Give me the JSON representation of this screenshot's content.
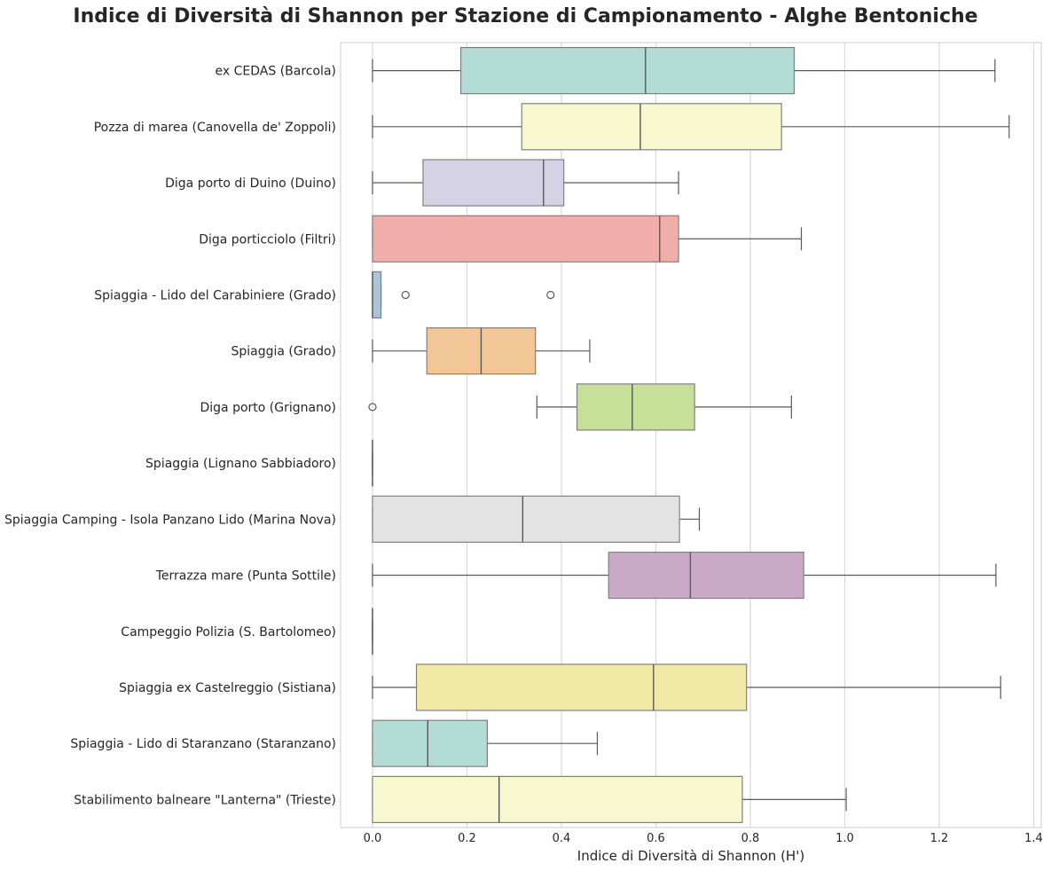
{
  "chart_data": {
    "type": "box",
    "orientation": "horizontal",
    "title": "Indice di Diversità di Shannon per Stazione di Campionamento - Alghe Bentoniche",
    "xlabel": "Indice di Diversità di Shannon (H')",
    "ylabel": "",
    "xlim": [
      -0.07,
      1.42
    ],
    "xticks": [
      0.0,
      0.2,
      0.4,
      0.6,
      0.8,
      1.0,
      1.2,
      1.4
    ],
    "xtick_labels": [
      "0.0",
      "0.2",
      "0.4",
      "0.6",
      "0.8",
      "1.0",
      "1.2",
      "1.4"
    ],
    "grid": "vertical",
    "categories": [
      "ex CEDAS (Barcola)",
      "Pozza di marea (Canovella de' Zoppoli)",
      "Diga porto di Duino (Duino)",
      "Diga porticciolo (Filtri)",
      "Spiaggia - Lido del Carabiniere (Grado)",
      "Spiaggia (Grado)",
      "Diga porto (Grignano)",
      "Spiaggia (Lignano Sabbiadoro)",
      "Spiaggia Camping - Isola Panzano Lido (Marina Nova)",
      "Terrazza mare (Punta Sottile)",
      "Campeggio Polizia (S. Bartolomeo)",
      "Spiaggia ex Castelreggio (Sistiana)",
      "Spiaggia - Lido di Staranzano (Staranzano)",
      "Stabilimento balneare \"Lanterna\" (Trieste)"
    ],
    "boxes": [
      {
        "whislo": 0.0,
        "q1": 0.187,
        "med": 0.578,
        "q3": 0.893,
        "whishi": 1.318,
        "fliers": [],
        "color": "#b3dcd6"
      },
      {
        "whislo": 0.0,
        "q1": 0.316,
        "med": 0.567,
        "q3": 0.866,
        "whishi": 1.348,
        "fliers": [],
        "color": "#f7f8cf"
      },
      {
        "whislo": 0.0,
        "q1": 0.107,
        "med": 0.362,
        "q3": 0.405,
        "whishi": 0.648,
        "fliers": [],
        "color": "#d4d2e4"
      },
      {
        "whislo": 0.0,
        "q1": 0.0,
        "med": 0.608,
        "q3": 0.648,
        "whishi": 0.908,
        "fliers": [],
        "color": "#f0aea9"
      },
      {
        "whislo": 0.0,
        "q1": 0.0,
        "med": 0.0,
        "q3": 0.018,
        "whishi": 0.018,
        "fliers": [
          0.07,
          0.377
        ],
        "color": "#a9c4db"
      },
      {
        "whislo": 0.0,
        "q1": 0.115,
        "med": 0.23,
        "q3": 0.345,
        "whishi": 0.46,
        "fliers": [],
        "color": "#f2c797"
      },
      {
        "whislo": 0.348,
        "q1": 0.433,
        "med": 0.55,
        "q3": 0.682,
        "whishi": 0.887,
        "fliers": [
          0.0
        ],
        "color": "#c6df99"
      },
      {
        "whislo": 0.0,
        "q1": 0.0,
        "med": 0.0,
        "q3": 0.0,
        "whishi": 0.0,
        "fliers": [],
        "color": "#dcdcdc"
      },
      {
        "whislo": 0.0,
        "q1": 0.0,
        "med": 0.318,
        "q3": 0.65,
        "whishi": 0.692,
        "fliers": [],
        "color": "#e3e3e3"
      },
      {
        "whislo": 0.0,
        "q1": 0.5,
        "med": 0.673,
        "q3": 0.913,
        "whishi": 1.32,
        "fliers": [],
        "color": "#cba9c9"
      },
      {
        "whislo": 0.0,
        "q1": 0.0,
        "med": 0.0,
        "q3": 0.0,
        "whishi": 0.0,
        "fliers": [],
        "color": "#f5f1c5"
      },
      {
        "whislo": 0.0,
        "q1": 0.093,
        "med": 0.595,
        "q3": 0.792,
        "whishi": 1.33,
        "fliers": [],
        "color": "#f2e8a6"
      },
      {
        "whislo": 0.0,
        "q1": 0.0,
        "med": 0.117,
        "q3": 0.243,
        "whishi": 0.476,
        "fliers": [],
        "color": "#b3dcd6"
      },
      {
        "whislo": 0.0,
        "q1": 0.0,
        "med": 0.268,
        "q3": 0.783,
        "whishi": 1.003,
        "fliers": [],
        "color": "#f7f8cf"
      }
    ]
  }
}
